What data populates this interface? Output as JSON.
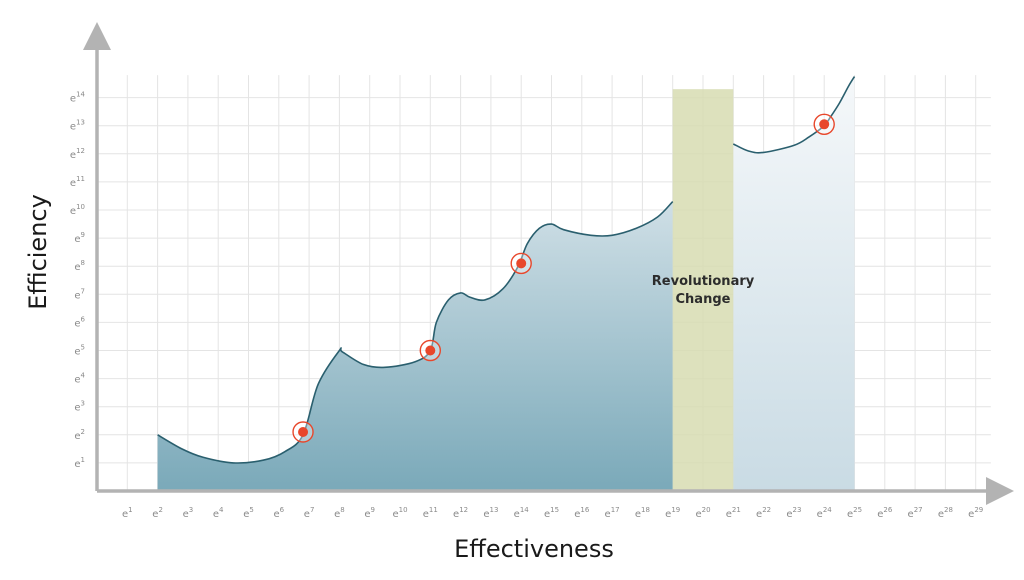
{
  "chart_data": {
    "type": "area",
    "title": "",
    "xlabel": "Effectiveness",
    "ylabel": "Efficiency",
    "x_tick_base": "e",
    "x_ticks": [
      1,
      2,
      3,
      4,
      5,
      6,
      7,
      8,
      9,
      10,
      11,
      12,
      13,
      14,
      15,
      16,
      17,
      18,
      19,
      20,
      21,
      22,
      23,
      24,
      25,
      26,
      27,
      28,
      29
    ],
    "y_tick_base": "e",
    "y_ticks": [
      1,
      2,
      3,
      4,
      5,
      6,
      7,
      8,
      9,
      10,
      11,
      12,
      13,
      14
    ],
    "xlim": [
      0,
      29.5
    ],
    "ylim": [
      0,
      14.8
    ],
    "grid": true,
    "series": [
      {
        "segment": "before",
        "x": [
          2,
          2.8,
          3.5,
          4.5,
          5.5,
          6.2,
          6.8,
          7.3,
          8,
          8.1,
          8.8,
          9.5,
          10.5,
          11,
          11.2,
          11.6,
          12,
          12.3,
          12.8,
          13.4,
          13.9,
          14.2,
          14.6,
          15,
          15.4,
          16.3,
          17,
          17.8,
          18.5,
          19
        ],
        "y": [
          2.0,
          1.5,
          1.2,
          1.0,
          1.1,
          1.4,
          2.0,
          3.8,
          5.0,
          4.95,
          4.5,
          4.4,
          4.6,
          5.0,
          6.0,
          6.8,
          7.05,
          6.9,
          6.8,
          7.2,
          8.0,
          8.8,
          9.35,
          9.5,
          9.3,
          9.1,
          9.1,
          9.35,
          9.75,
          10.3
        ]
      },
      {
        "segment": "after",
        "x": [
          21,
          21.5,
          22,
          23,
          23.5,
          24,
          24.2,
          24.5,
          24.8,
          25
        ],
        "y": [
          12.35,
          12.1,
          12.05,
          12.3,
          12.6,
          13.0,
          13.3,
          13.8,
          14.4,
          14.75
        ]
      }
    ],
    "markers": [
      {
        "x": 6.8,
        "y": 2.1
      },
      {
        "x": 11,
        "y": 5.0
      },
      {
        "x": 14,
        "y": 8.1
      },
      {
        "x": 24,
        "y": 13.05
      }
    ],
    "highlight_band": {
      "x": [
        19,
        21
      ],
      "label": [
        "Revolutionary",
        "Change"
      ]
    },
    "colors": {
      "curve": "#2a5f6e",
      "fill_top": "#cfdfe6",
      "fill_bottom": "#7aa9b9",
      "band": "#d7dcb2",
      "marker": "#e8472b",
      "axis": "#b3b3b3",
      "grid": "#e4e4e4"
    }
  }
}
